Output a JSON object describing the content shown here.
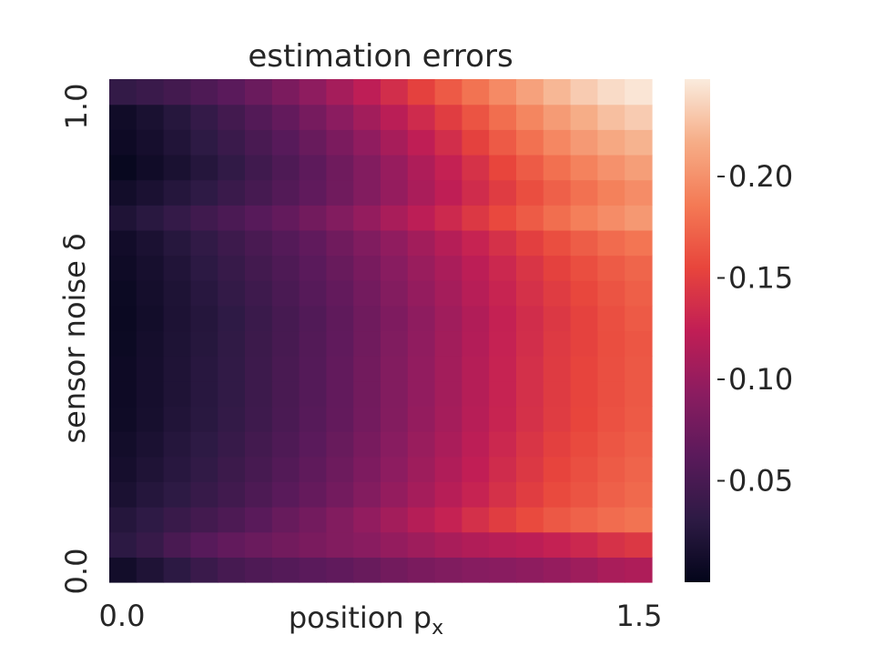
{
  "chart_data": {
    "type": "heatmap",
    "title": "estimation errors",
    "xlabel": "position p",
    "xlabel_subscript": "x",
    "ylabel": "sensor noise δ",
    "x_tick_labels": [
      "0.0",
      "1.5"
    ],
    "y_tick_labels": [
      "0.0",
      "1.0"
    ],
    "xlim": [
      0.0,
      1.5
    ],
    "ylim": [
      0.0,
      1.0
    ],
    "n_cols": 20,
    "n_rows": 20,
    "values": [
      [
        0.012,
        0.021,
        0.03,
        0.04,
        0.048,
        0.054,
        0.058,
        0.062,
        0.066,
        0.071,
        0.077,
        0.082,
        0.086,
        0.09,
        0.092,
        0.095,
        0.099,
        0.104,
        0.11,
        0.113
      ],
      [
        0.03,
        0.038,
        0.05,
        0.06,
        0.067,
        0.072,
        0.077,
        0.082,
        0.087,
        0.092,
        0.098,
        0.104,
        0.11,
        0.115,
        0.118,
        0.121,
        0.126,
        0.132,
        0.14,
        0.145
      ],
      [
        0.025,
        0.032,
        0.039,
        0.046,
        0.053,
        0.061,
        0.07,
        0.078,
        0.087,
        0.097,
        0.107,
        0.117,
        0.127,
        0.138,
        0.149,
        0.158,
        0.166,
        0.172,
        0.178,
        0.182
      ],
      [
        0.018,
        0.025,
        0.031,
        0.038,
        0.045,
        0.053,
        0.061,
        0.069,
        0.078,
        0.088,
        0.098,
        0.108,
        0.118,
        0.128,
        0.139,
        0.149,
        0.158,
        0.164,
        0.171,
        0.176
      ],
      [
        0.014,
        0.021,
        0.027,
        0.034,
        0.041,
        0.049,
        0.057,
        0.065,
        0.074,
        0.084,
        0.094,
        0.104,
        0.114,
        0.124,
        0.135,
        0.145,
        0.154,
        0.161,
        0.168,
        0.173
      ],
      [
        0.012,
        0.018,
        0.025,
        0.031,
        0.038,
        0.046,
        0.054,
        0.062,
        0.071,
        0.081,
        0.091,
        0.101,
        0.111,
        0.121,
        0.132,
        0.142,
        0.151,
        0.158,
        0.165,
        0.17
      ],
      [
        0.009,
        0.015,
        0.022,
        0.028,
        0.035,
        0.043,
        0.051,
        0.059,
        0.068,
        0.078,
        0.088,
        0.098,
        0.108,
        0.118,
        0.129,
        0.139,
        0.148,
        0.155,
        0.162,
        0.167
      ],
      [
        0.008,
        0.014,
        0.021,
        0.027,
        0.034,
        0.042,
        0.05,
        0.058,
        0.067,
        0.077,
        0.087,
        0.097,
        0.107,
        0.117,
        0.128,
        0.138,
        0.147,
        0.154,
        0.161,
        0.166
      ],
      [
        0.008,
        0.014,
        0.021,
        0.027,
        0.034,
        0.042,
        0.05,
        0.058,
        0.067,
        0.077,
        0.087,
        0.097,
        0.107,
        0.117,
        0.128,
        0.138,
        0.147,
        0.154,
        0.161,
        0.166
      ],
      [
        0.007,
        0.013,
        0.02,
        0.026,
        0.033,
        0.041,
        0.049,
        0.057,
        0.066,
        0.076,
        0.086,
        0.096,
        0.106,
        0.116,
        0.127,
        0.137,
        0.146,
        0.153,
        0.16,
        0.165
      ],
      [
        0.006,
        0.012,
        0.019,
        0.025,
        0.032,
        0.04,
        0.048,
        0.056,
        0.065,
        0.075,
        0.085,
        0.095,
        0.105,
        0.115,
        0.126,
        0.136,
        0.145,
        0.153,
        0.161,
        0.167
      ],
      [
        0.007,
        0.013,
        0.02,
        0.027,
        0.035,
        0.043,
        0.051,
        0.059,
        0.068,
        0.078,
        0.088,
        0.098,
        0.108,
        0.118,
        0.129,
        0.139,
        0.148,
        0.156,
        0.164,
        0.17
      ],
      [
        0.009,
        0.015,
        0.022,
        0.03,
        0.038,
        0.046,
        0.054,
        0.062,
        0.071,
        0.081,
        0.091,
        0.101,
        0.111,
        0.121,
        0.132,
        0.142,
        0.152,
        0.16,
        0.168,
        0.174
      ],
      [
        0.011,
        0.018,
        0.026,
        0.034,
        0.042,
        0.05,
        0.058,
        0.066,
        0.076,
        0.086,
        0.096,
        0.106,
        0.117,
        0.128,
        0.139,
        0.15,
        0.16,
        0.169,
        0.177,
        0.183
      ],
      [
        0.021,
        0.028,
        0.036,
        0.044,
        0.052,
        0.06,
        0.068,
        0.077,
        0.087,
        0.098,
        0.11,
        0.121,
        0.133,
        0.145,
        0.157,
        0.168,
        0.179,
        0.189,
        0.197,
        0.204
      ],
      [
        0.012,
        0.018,
        0.025,
        0.032,
        0.04,
        0.048,
        0.057,
        0.066,
        0.076,
        0.087,
        0.099,
        0.111,
        0.123,
        0.135,
        0.148,
        0.16,
        0.171,
        0.181,
        0.19,
        0.197
      ],
      [
        0.004,
        0.01,
        0.017,
        0.025,
        0.034,
        0.044,
        0.054,
        0.064,
        0.075,
        0.087,
        0.1,
        0.113,
        0.126,
        0.14,
        0.155,
        0.168,
        0.18,
        0.191,
        0.2,
        0.208
      ],
      [
        0.008,
        0.014,
        0.022,
        0.031,
        0.04,
        0.05,
        0.06,
        0.071,
        0.083,
        0.096,
        0.109,
        0.123,
        0.137,
        0.152,
        0.167,
        0.181,
        0.194,
        0.205,
        0.214,
        0.22
      ],
      [
        0.01,
        0.017,
        0.026,
        0.036,
        0.046,
        0.057,
        0.068,
        0.08,
        0.093,
        0.106,
        0.12,
        0.134,
        0.149,
        0.164,
        0.179,
        0.193,
        0.206,
        0.217,
        0.226,
        0.232
      ],
      [
        0.035,
        0.04,
        0.046,
        0.054,
        0.062,
        0.072,
        0.083,
        0.095,
        0.108,
        0.122,
        0.137,
        0.152,
        0.167,
        0.182,
        0.196,
        0.21,
        0.222,
        0.232,
        0.24,
        0.245
      ]
    ],
    "colorbar": {
      "min": 0.0,
      "max": 0.248,
      "ticks": [
        0.05,
        0.1,
        0.15,
        0.2
      ],
      "tick_labels": [
        "0.05",
        "0.10",
        "0.15",
        "0.20"
      ],
      "colormap": "rocket",
      "colormap_stops": [
        "#03051a",
        "#2d1a44",
        "#5a1a5b",
        "#8b1c60",
        "#c11e55",
        "#e8453c",
        "#f47a55",
        "#f6ad87",
        "#faebdd"
      ]
    },
    "grid": false,
    "background": "#ffffff"
  }
}
